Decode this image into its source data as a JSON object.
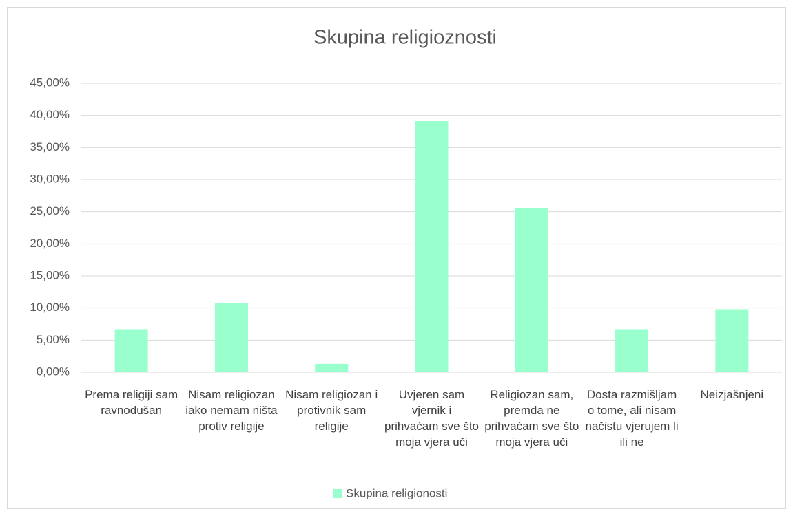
{
  "chart_data": {
    "type": "bar",
    "title": "Skupina religioznosti",
    "categories": [
      "Prema religiji sam ravnodušan",
      "Nisam religiozan iako nemam ništa protiv religije",
      "Nisam religiozan i protivnik sam religije",
      "Uvjeren sam vjernik i prihvaćam sve što moja vjera uči",
      "Religiozan sam, premda ne prihvaćam sve što moja vjera uči",
      "Dosta razmišljam o tome, ali nisam načistu vjerujem li ili ne",
      "Neizjašnjeni"
    ],
    "series": [
      {
        "name": "Skupina religionosti",
        "color": "#99ffcc",
        "values": [
          6.7,
          10.8,
          1.3,
          39.1,
          25.6,
          6.7,
          9.8
        ]
      }
    ],
    "ylim": [
      0,
      45
    ],
    "yticks": [
      {
        "value": 0,
        "label": "0,00%"
      },
      {
        "value": 5,
        "label": "5,00%"
      },
      {
        "value": 10,
        "label": "10,00%"
      },
      {
        "value": 15,
        "label": "15,00%"
      },
      {
        "value": 20,
        "label": "20,00%"
      },
      {
        "value": 25,
        "label": "25,00%"
      },
      {
        "value": 30,
        "label": "30,00%"
      },
      {
        "value": 35,
        "label": "35,00%"
      },
      {
        "value": 40,
        "label": "40,00%"
      },
      {
        "value": 45,
        "label": "45,00%"
      }
    ],
    "grid": true,
    "legend": "bottom"
  }
}
